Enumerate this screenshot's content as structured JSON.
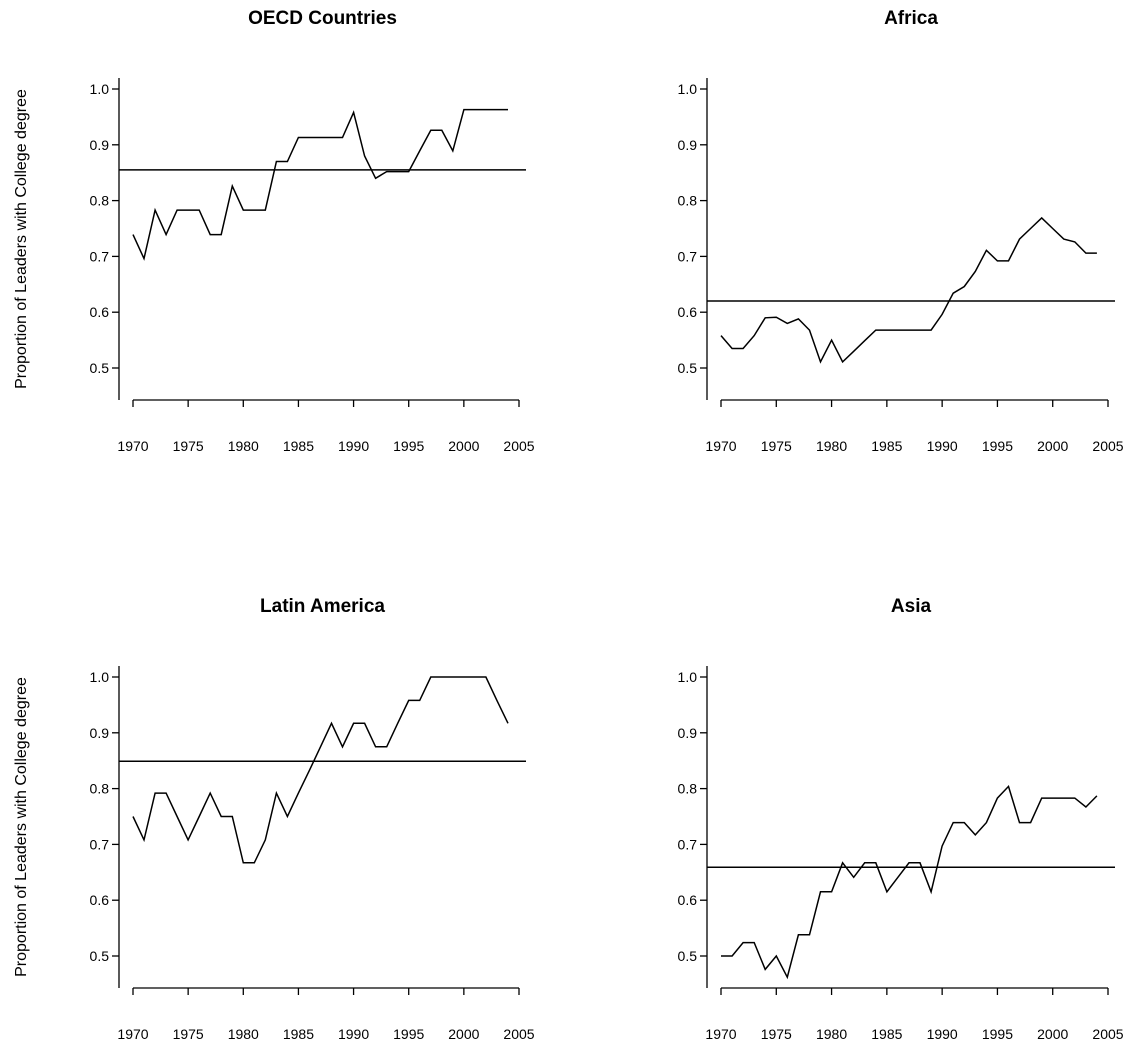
{
  "chart_data": [
    {
      "type": "line",
      "title": "OECD Countries",
      "xlabel": "",
      "ylabel": "Proportion of Leaders with College degree",
      "xlim": [
        1970,
        2005
      ],
      "ylim": [
        0.44,
        1.02
      ],
      "xticks": [
        "1970",
        "1975",
        "1980",
        "1985",
        "1990",
        "1995",
        "2000",
        "2005"
      ],
      "yticks": [
        "0.5",
        "0.6",
        "0.7",
        "0.8",
        "0.9",
        "1.0"
      ],
      "reference_line": 0.855,
      "series": [
        {
          "x": [
            1970,
            1971,
            1972,
            1973,
            1974,
            1975,
            1976,
            1977,
            1978,
            1979,
            1980,
            1981,
            1982,
            1983,
            1984,
            1985,
            1986,
            1987,
            1988,
            1989,
            1990,
            1991,
            1992,
            1993,
            1994,
            1995,
            1996,
            1997,
            1998,
            1999,
            2000,
            2001,
            2002,
            2003,
            2004
          ],
          "y": [
            0.739,
            0.696,
            0.783,
            0.739,
            0.783,
            0.783,
            0.783,
            0.739,
            0.739,
            0.826,
            0.783,
            0.783,
            0.783,
            0.87,
            0.87,
            0.913,
            0.913,
            0.913,
            0.913,
            0.913,
            0.958,
            0.88,
            0.84,
            0.852,
            0.852,
            0.852,
            0.889,
            0.926,
            0.926,
            0.889,
            0.963,
            0.963,
            0.963,
            0.963,
            0.963
          ]
        }
      ]
    },
    {
      "type": "line",
      "title": "Africa",
      "xlabel": "",
      "ylabel": "",
      "xlim": [
        1970,
        2005
      ],
      "ylim": [
        0.44,
        1.02
      ],
      "xticks": [
        "1970",
        "1975",
        "1980",
        "1985",
        "1990",
        "1995",
        "2000",
        "2005"
      ],
      "yticks": [
        "0.5",
        "0.6",
        "0.7",
        "0.8",
        "0.9",
        "1.0"
      ],
      "reference_line": 0.62,
      "series": [
        {
          "x": [
            1970,
            1971,
            1972,
            1973,
            1974,
            1975,
            1976,
            1977,
            1978,
            1979,
            1980,
            1981,
            1982,
            1983,
            1984,
            1985,
            1986,
            1987,
            1988,
            1989,
            1990,
            1991,
            1992,
            1993,
            1994,
            1995,
            1996,
            1997,
            1998,
            1999,
            2000,
            2001,
            2002,
            2003,
            2004
          ],
          "y": [
            0.558,
            0.535,
            0.535,
            0.558,
            0.59,
            0.591,
            0.58,
            0.588,
            0.568,
            0.511,
            0.55,
            0.511,
            0.53,
            0.549,
            0.568,
            0.568,
            0.568,
            0.568,
            0.568,
            0.568,
            0.596,
            0.634,
            0.646,
            0.673,
            0.711,
            0.692,
            0.692,
            0.731,
            0.75,
            0.769,
            0.75,
            0.731,
            0.726,
            0.706,
            0.706
          ]
        }
      ]
    },
    {
      "type": "line",
      "title": "Latin America",
      "xlabel": "",
      "ylabel": "Proportion of Leaders with College degree",
      "xlim": [
        1970,
        2005
      ],
      "ylim": [
        0.44,
        1.02
      ],
      "xticks": [
        "1970",
        "1975",
        "1980",
        "1985",
        "1990",
        "1995",
        "2000",
        "2005"
      ],
      "yticks": [
        "0.5",
        "0.6",
        "0.7",
        "0.8",
        "0.9",
        "1.0"
      ],
      "reference_line": 0.849,
      "series": [
        {
          "x": [
            1970,
            1971,
            1972,
            1973,
            1974,
            1975,
            1976,
            1977,
            1978,
            1979,
            1980,
            1981,
            1982,
            1983,
            1984,
            1985,
            1986,
            1987,
            1988,
            1989,
            1990,
            1991,
            1992,
            1993,
            1994,
            1995,
            1996,
            1997,
            1998,
            1999,
            2000,
            2001,
            2002,
            2003,
            2004
          ],
          "y": [
            0.75,
            0.708,
            0.792,
            0.792,
            0.75,
            0.708,
            0.75,
            0.792,
            0.75,
            0.75,
            0.667,
            0.667,
            0.708,
            0.792,
            0.75,
            0.792,
            0.833,
            0.875,
            0.917,
            0.875,
            0.917,
            0.917,
            0.875,
            0.875,
            0.917,
            0.958,
            0.958,
            1.0,
            1.0,
            1.0,
            1.0,
            1.0,
            1.0,
            0.958,
            0.917
          ]
        }
      ]
    },
    {
      "type": "line",
      "title": "Asia",
      "xlabel": "",
      "ylabel": "",
      "xlim": [
        1970,
        2005
      ],
      "ylim": [
        0.44,
        1.02
      ],
      "xticks": [
        "1970",
        "1975",
        "1980",
        "1985",
        "1990",
        "1995",
        "2000",
        "2005"
      ],
      "yticks": [
        "0.5",
        "0.6",
        "0.7",
        "0.8",
        "0.9",
        "1.0"
      ],
      "reference_line": 0.659,
      "series": [
        {
          "x": [
            1970,
            1971,
            1972,
            1973,
            1974,
            1975,
            1976,
            1977,
            1978,
            1979,
            1980,
            1981,
            1982,
            1983,
            1984,
            1985,
            1986,
            1987,
            1988,
            1989,
            1990,
            1991,
            1992,
            1993,
            1994,
            1995,
            1996,
            1997,
            1998,
            1999,
            2000,
            2001,
            2002,
            2003,
            2004
          ],
          "y": [
            0.5,
            0.5,
            0.524,
            0.524,
            0.476,
            0.5,
            0.462,
            0.538,
            0.538,
            0.615,
            0.615,
            0.667,
            0.641,
            0.667,
            0.667,
            0.615,
            0.641,
            0.667,
            0.667,
            0.615,
            0.697,
            0.739,
            0.739,
            0.717,
            0.739,
            0.783,
            0.804,
            0.739,
            0.739,
            0.783,
            0.783,
            0.783,
            0.783,
            0.767,
            0.787
          ]
        }
      ]
    }
  ]
}
